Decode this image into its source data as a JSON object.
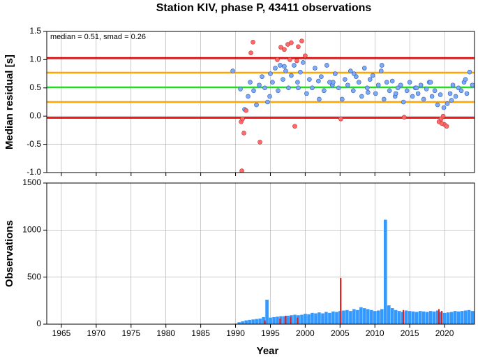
{
  "chart_data": [
    {
      "type": "scatter",
      "title": "Station KIV, phase P, 43411 observations",
      "y_label": "Median residual [s]",
      "annotation": "median = 0.51, smad = 0.26",
      "xlim": [
        1962.9,
        2024.3
      ],
      "xticks": [
        1965,
        1970,
        1975,
        1980,
        1985,
        1990,
        1995,
        2000,
        2005,
        2010,
        2015,
        2020
      ],
      "ylim": [
        -1.0,
        1.5
      ],
      "yticks": [
        {
          "value": -1.0,
          "label": "-1.0"
        },
        -0.5,
        {
          "value": 0.0,
          "label": "0.0"
        },
        0.5,
        {
          "value": 1.0,
          "label": "1.0"
        },
        1.5
      ],
      "grid": true,
      "hlines": [
        {
          "value": 1.03,
          "color": "#e00000"
        },
        {
          "value": 0.77,
          "color": "#ffa500"
        },
        {
          "value": 0.51,
          "color": "#22dd22"
        },
        {
          "value": 0.25,
          "color": "#ffa500"
        },
        {
          "value": -0.03,
          "color": "#e00000"
        }
      ],
      "series": [
        {
          "name": "inliers",
          "color": "#7eaaf6",
          "x": [
            1989.6,
            1990.7,
            1991.3,
            1991.8,
            1992.1,
            1992.6,
            1993.0,
            1993.4,
            1993.8,
            1994.2,
            1994.6,
            1995.0,
            1995.3,
            1995.7,
            1996.1,
            1996.4,
            1996.8,
            1997.2,
            1997.6,
            1998.0,
            1998.4,
            1998.9,
            1999.3,
            1999.7,
            2000.2,
            2000.6,
            2001.0,
            2001.4,
            2001.9,
            2002.3,
            2002.7,
            2003.1,
            2003.5,
            2003.9,
            2004.3,
            2004.8,
            2005.3,
            2005.7,
            2006.1,
            2006.5,
            2006.9,
            2007.3,
            2007.7,
            2008.1,
            2008.5,
            2008.9,
            2009.3,
            2009.7,
            2010.1,
            2010.5,
            2010.9,
            2011.3,
            2011.7,
            2012.1,
            2012.5,
            2012.9,
            2013.3,
            2013.7,
            2014.1,
            2014.6,
            2015.0,
            2015.4,
            2015.8,
            2016.2,
            2016.6,
            2017.0,
            2017.4,
            2017.8,
            2018.2,
            2018.6,
            2019.0,
            2019.4,
            2019.9,
            2020.4,
            2020.8,
            2021.2,
            2021.6,
            2022.0,
            2022.4,
            2022.8,
            2023.2,
            2023.6,
            2024.0,
            1994.9,
            1997.0,
            1999.0,
            2002.0,
            2004.0,
            2007.0,
            2009.0,
            2011.0,
            2013.0,
            2016.0,
            2018.0,
            2021.0,
            2023.0
          ],
          "values": [
            0.8,
            0.48,
            0.12,
            0.35,
            0.6,
            0.45,
            0.2,
            0.55,
            0.7,
            0.5,
            0.25,
            0.75,
            0.6,
            0.85,
            0.45,
            0.9,
            0.65,
            0.8,
            0.5,
            0.72,
            0.9,
            0.6,
            0.78,
            0.95,
            0.4,
            0.65,
            0.5,
            0.85,
            0.62,
            0.7,
            0.45,
            0.9,
            0.6,
            0.55,
            0.75,
            0.5,
            0.3,
            0.65,
            0.55,
            0.8,
            0.45,
            0.7,
            0.6,
            0.35,
            0.85,
            0.5,
            0.65,
            0.72,
            0.4,
            0.55,
            0.8,
            0.3,
            0.6,
            0.45,
            0.62,
            0.35,
            0.5,
            0.55,
            0.25,
            0.45,
            0.6,
            0.35,
            0.5,
            0.4,
            0.55,
            0.3,
            0.48,
            0.6,
            0.35,
            0.45,
            0.2,
            0.38,
            0.15,
            0.22,
            0.4,
            0.55,
            0.35,
            0.5,
            0.45,
            0.6,
            0.4,
            0.78,
            0.55,
            0.35,
            0.88,
            0.5,
            0.3,
            0.6,
            0.75,
            0.42,
            0.9,
            0.4,
            0.5,
            0.6,
            0.28,
            0.65
          ]
        },
        {
          "name": "outliers",
          "color": "#ff6a6a",
          "x": [
            1990.9,
            1990.8,
            1991.2,
            1991.0,
            1991.5,
            1992.2,
            1992.5,
            1993.5,
            1996.0,
            1996.5,
            1997.0,
            1997.5,
            1998.0,
            1997.8,
            1998.5,
            1999.0,
            1999.5,
            2000.0,
            1998.8,
            2005.1,
            2014.2,
            2019.2,
            2019.5,
            2019.8,
            2020.0,
            2020.3,
            2019.6
          ],
          "values": [
            -0.97,
            -0.1,
            -0.3,
            -0.05,
            0.1,
            1.12,
            1.31,
            -0.46,
            1.0,
            1.22,
            1.18,
            1.27,
            1.3,
            1.0,
            -0.18,
            1.23,
            1.33,
            1.07,
            0.98,
            -0.05,
            -0.02,
            -0.1,
            -0.05,
            0.0,
            -0.15,
            -0.18,
            -0.13
          ]
        }
      ]
    },
    {
      "type": "bar",
      "y_label": "Observations",
      "x_label": "Year",
      "xlim": [
        1962.9,
        2024.3
      ],
      "xticks": [
        1965,
        1970,
        1975,
        1980,
        1985,
        1990,
        1995,
        2000,
        2005,
        2010,
        2015,
        2020
      ],
      "ylim": [
        0,
        1500
      ],
      "yticks": [
        0,
        500,
        1000,
        1500
      ],
      "grid": true,
      "series": [
        {
          "name": "all",
          "color": "#3399ff",
          "x": [
            1990.0,
            1990.5,
            1991.0,
            1991.5,
            1992.0,
            1992.5,
            1993.0,
            1993.5,
            1994.0,
            1994.5,
            1995.0,
            1995.5,
            1996.0,
            1996.5,
            1997.0,
            1997.5,
            1998.0,
            1998.5,
            1999.0,
            1999.5,
            2000.0,
            2000.5,
            2001.0,
            2001.5,
            2002.0,
            2002.5,
            2003.0,
            2003.5,
            2004.0,
            2004.5,
            2005.0,
            2005.5,
            2006.0,
            2006.5,
            2007.0,
            2007.5,
            2008.0,
            2008.5,
            2009.0,
            2009.5,
            2010.0,
            2010.5,
            2011.0,
            2011.5,
            2012.0,
            2012.5,
            2013.0,
            2013.5,
            2014.0,
            2014.5,
            2015.0,
            2015.5,
            2016.0,
            2016.5,
            2017.0,
            2017.5,
            2018.0,
            2018.5,
            2019.0,
            2019.5,
            2020.0,
            2020.5,
            2021.0,
            2021.5,
            2022.0,
            2022.5,
            2023.0,
            2023.5,
            2024.0
          ],
          "values": [
            5,
            20,
            30,
            40,
            45,
            50,
            55,
            60,
            75,
            260,
            70,
            75,
            80,
            85,
            85,
            90,
            95,
            100,
            95,
            100,
            110,
            105,
            120,
            115,
            125,
            115,
            130,
            120,
            135,
            130,
            140,
            145,
            150,
            140,
            160,
            150,
            180,
            170,
            160,
            150,
            140,
            145,
            160,
            1110,
            200,
            170,
            150,
            140,
            130,
            145,
            140,
            135,
            130,
            140,
            135,
            130,
            140,
            135,
            145,
            130,
            120,
            125,
            130,
            140,
            135,
            140,
            145,
            150,
            140
          ]
        },
        {
          "name": "outliers",
          "color": "#dd2222",
          "x": [
            1994.3,
            1996.5,
            1997.3,
            1998.0,
            1999.0,
            2005.2,
            2014.2,
            2019.3,
            2019.7
          ],
          "values": [
            40,
            60,
            90,
            80,
            70,
            490,
            150,
            160,
            140
          ]
        }
      ]
    }
  ]
}
